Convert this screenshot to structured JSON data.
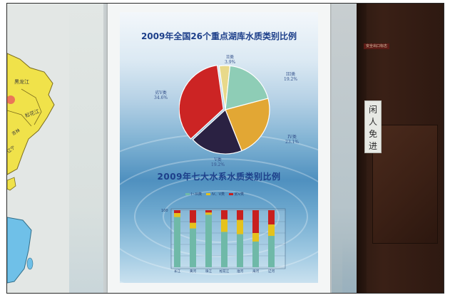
{
  "poster": {
    "title_pie": "2009年全国26个重点湖库水质类别比例",
    "title_bar": "2009年七大水系水质类别比例",
    "pie_labels": [
      {
        "name": "II类",
        "pct": "3.9%"
      },
      {
        "name": "III类",
        "pct": "19.2%"
      },
      {
        "name": "IV类",
        "pct": "23.1%"
      },
      {
        "name": "V类",
        "pct": "19.2%"
      },
      {
        "name": "劣V类",
        "pct": "34.6%"
      }
    ],
    "pie_slices": [
      {
        "name": "II类",
        "value": 3.9,
        "color": "#e8d98a"
      },
      {
        "name": "III类",
        "value": 19.2,
        "color": "#8ecdb6"
      },
      {
        "name": "IV类",
        "value": 23.1,
        "color": "#e2a734"
      },
      {
        "name": "V类",
        "value": 19.2,
        "color": "#2a2142"
      },
      {
        "name": "劣V类",
        "value": 34.6,
        "color": "#cc2424"
      }
    ],
    "bar_legend": [
      {
        "label": "I~III类",
        "color": "#6fb9a8"
      },
      {
        "label": "IV、V类",
        "color": "#e5c21d"
      },
      {
        "label": "劣V类",
        "color": "#c8201e"
      }
    ],
    "bar_axis_max": "100",
    "bar_categories": [
      "长江",
      "黄河",
      "珠江",
      "松花江",
      "淮河",
      "海河",
      "辽河"
    ],
    "bar_series": [
      {
        "name": "I~III类",
        "values": [
          88,
          68,
          92,
          62,
          58,
          45,
          55
        ]
      },
      {
        "name": "IV、V类",
        "values": [
          7,
          10,
          4,
          22,
          25,
          15,
          20
        ]
      },
      {
        "name": "劣V类",
        "values": [
          5,
          22,
          4,
          16,
          17,
          40,
          25
        ]
      }
    ]
  },
  "map_labels": [
    "黑龙江",
    "松花江",
    "吉林",
    "辽宁"
  ],
  "door": {
    "sign_top": "安全出口标志",
    "sign_text": "闲人免进"
  }
}
